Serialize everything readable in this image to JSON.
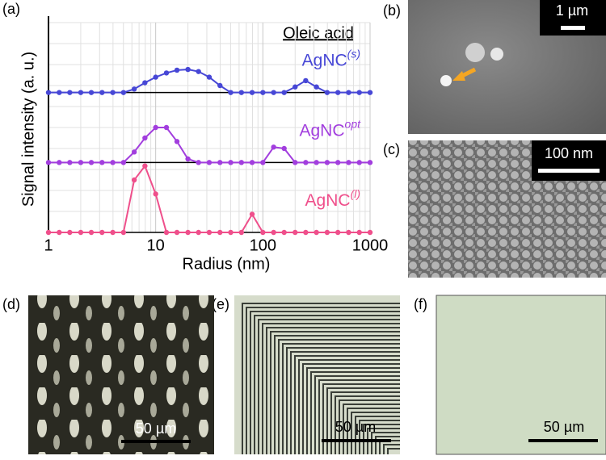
{
  "chart_data": {
    "type": "line",
    "x_label": "Radius (nm)",
    "y_label": "Signal intensity (a. u.)",
    "legend_title": "Oleic acid",
    "xscale": "log",
    "xlim": [
      1,
      1000
    ],
    "xticks": [
      1,
      10,
      100,
      1000
    ],
    "ylim": [
      0,
      1
    ],
    "grid": true,
    "x": [
      1,
      1.26,
      1.58,
      2,
      2.51,
      3.16,
      3.98,
      5.01,
      6.31,
      7.94,
      10,
      12.6,
      15.8,
      20,
      25.1,
      31.6,
      39.8,
      50.1,
      63.1,
      79.4,
      100,
      126,
      158,
      200,
      251,
      316,
      398,
      501,
      631,
      794,
      1000
    ],
    "series": [
      {
        "name": "AgNC",
        "superscript": "(s)",
        "color": "#4747d6",
        "values": [
          0,
          0,
          0,
          0,
          0,
          0,
          0,
          0,
          0.05,
          0.14,
          0.22,
          0.28,
          0.32,
          0.33,
          0.3,
          0.22,
          0.1,
          0,
          0,
          0,
          0,
          0,
          0,
          0.08,
          0.17,
          0.08,
          0,
          0,
          0,
          0,
          0
        ]
      },
      {
        "name": "AgNC",
        "superscript": "opt",
        "color": "#a23ede",
        "values": [
          0,
          0,
          0,
          0,
          0,
          0,
          0,
          0,
          0.15,
          0.35,
          0.5,
          0.5,
          0.3,
          0.05,
          0,
          0,
          0,
          0,
          0,
          0,
          0,
          0.22,
          0.2,
          0,
          0,
          0,
          0,
          0,
          0,
          0,
          0
        ]
      },
      {
        "name": "AgNC",
        "superscript": "(l)",
        "color": "#ef4f8b",
        "values": [
          0,
          0,
          0,
          0,
          0,
          0,
          0,
          0,
          0.75,
          0.95,
          0.55,
          0,
          0,
          0,
          0,
          0,
          0,
          0,
          0,
          0.26,
          0,
          0,
          0,
          0,
          0,
          0,
          0,
          0,
          0,
          0,
          0
        ]
      }
    ]
  },
  "panels": {
    "a": "(a)",
    "b": "(b)",
    "c": "(c)",
    "d": "(d)",
    "e": "(e)",
    "f": "(f)"
  },
  "scale_bars": {
    "b": "1 µm",
    "c": "100 nm",
    "d": "50 µm",
    "e": "50 µm",
    "f": "50 µm"
  }
}
